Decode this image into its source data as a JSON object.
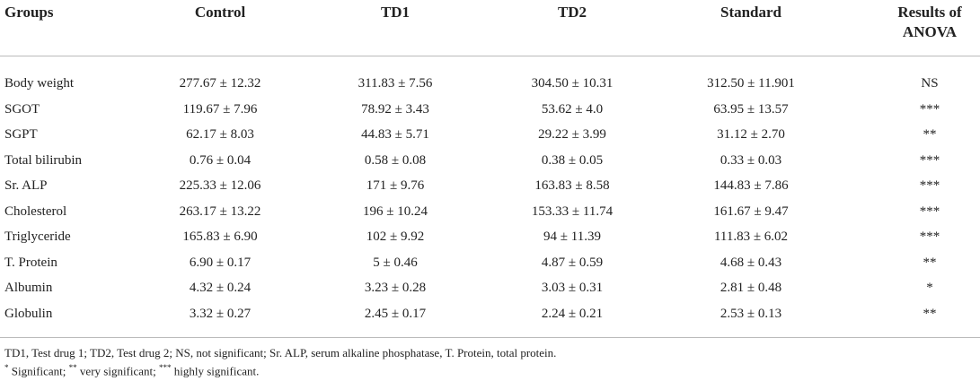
{
  "table": {
    "header": [
      "Groups",
      "Control",
      "TD1",
      "TD2",
      "Standard",
      "Results of ANOVA"
    ],
    "rows": [
      [
        "Body weight",
        "277.67 ± 12.32",
        "311.83 ± 7.56",
        "304.50 ± 10.31",
        "312.50 ± 11.901",
        "NS"
      ],
      [
        "SGOT",
        "119.67 ± 7.96",
        "78.92 ± 3.43",
        "53.62 ± 4.0",
        "63.95 ± 13.57",
        "***"
      ],
      [
        "SGPT",
        "62.17 ± 8.03",
        "44.83 ± 5.71",
        "29.22 ± 3.99",
        "31.12 ± 2.70",
        "**"
      ],
      [
        "Total bilirubin",
        "0.76 ± 0.04",
        "0.58 ± 0.08",
        "0.38 ± 0.05",
        "0.33 ± 0.03",
        "***"
      ],
      [
        "Sr. ALP",
        "225.33 ± 12.06",
        "171 ± 9.76",
        "163.83 ± 8.58",
        "144.83 ± 7.86",
        "***"
      ],
      [
        "Cholesterol",
        "263.17 ± 13.22",
        "196 ± 10.24",
        "153.33 ± 11.74",
        "161.67 ± 9.47",
        "***"
      ],
      [
        "Triglyceride",
        "165.83 ± 6.90",
        "102 ± 9.92",
        "94 ± 11.39",
        "111.83 ± 6.02",
        "***"
      ],
      [
        "T. Protein",
        "6.90 ± 0.17",
        "5 ± 0.46",
        "4.87 ± 0.59",
        "4.68 ± 0.43",
        "**"
      ],
      [
        "Albumin",
        "4.32 ± 0.24",
        "3.23 ± 0.28",
        "3.03 ± 0.31",
        "2.81 ± 0.48",
        "*"
      ],
      [
        "Globulin",
        "3.32 ± 0.27",
        "2.45 ± 0.17",
        "2.24 ± 0.21",
        "2.53 ± 0.13",
        "**"
      ]
    ]
  },
  "footnotes": {
    "abbreviations": "TD1, Test drug 1; TD2, Test drug 2; NS, not significant; Sr. ALP, serum alkaline phosphatase, T. Protein, total protein.",
    "significance": [
      {
        "mark": "*",
        "text": "Significant;"
      },
      {
        "mark": "**",
        "text": "very significant;"
      },
      {
        "mark": "***",
        "text": "highly significant."
      }
    ]
  }
}
